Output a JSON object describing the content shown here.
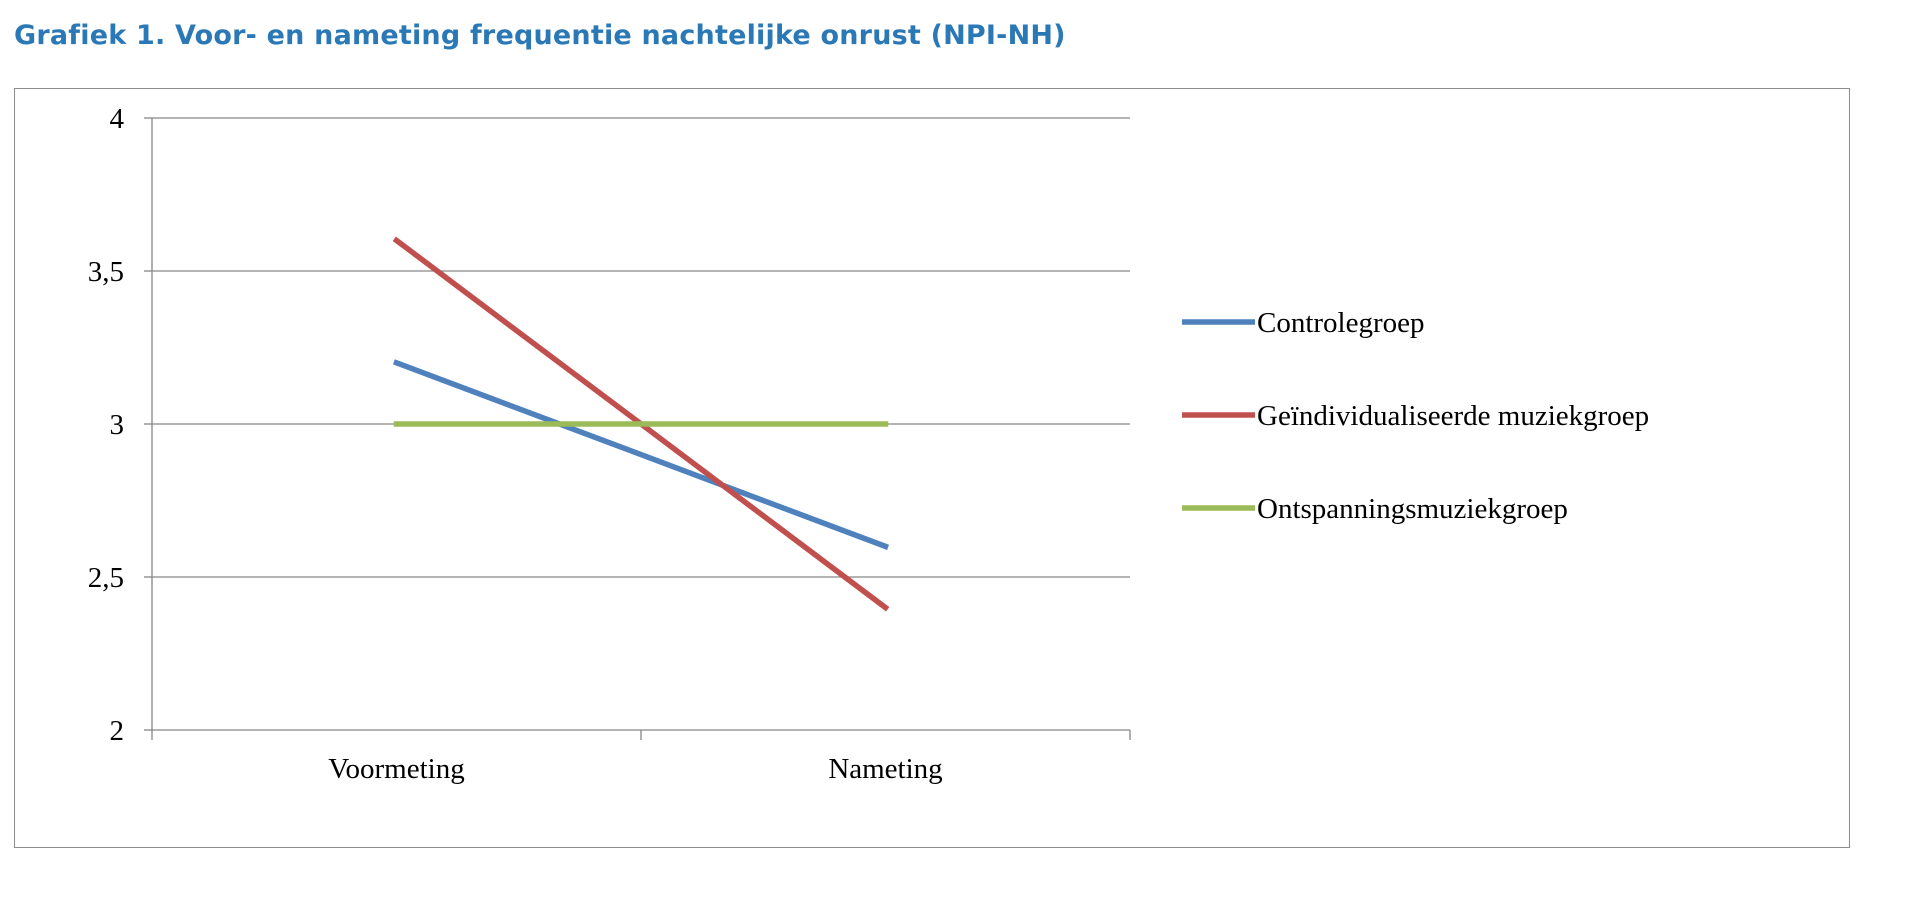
{
  "chart_data": {
    "type": "line",
    "title": "Grafiek 1. Voor- en nameting frequentie nachtelijke onrust (NPI-NH)",
    "categories": [
      "Voormeting",
      "Nameting"
    ],
    "series": [
      {
        "name": "Controlegroep",
        "values": [
          3.2,
          2.6
        ],
        "color": "#4f81bd"
      },
      {
        "name": "Geïndividualiseerde muziekgroep",
        "values": [
          3.6,
          2.4
        ],
        "color": "#c0504d"
      },
      {
        "name": "Ontspanningsmuziekgroep",
        "values": [
          3.0,
          3.0
        ],
        "color": "#9bbb59"
      }
    ],
    "ylim": [
      2,
      4
    ],
    "yticks": [
      2,
      2.5,
      3,
      3.5,
      4
    ],
    "ytick_labels": [
      "2",
      "2,5",
      "3",
      "3,5",
      "4"
    ],
    "grid": true,
    "legend_position": "right"
  }
}
